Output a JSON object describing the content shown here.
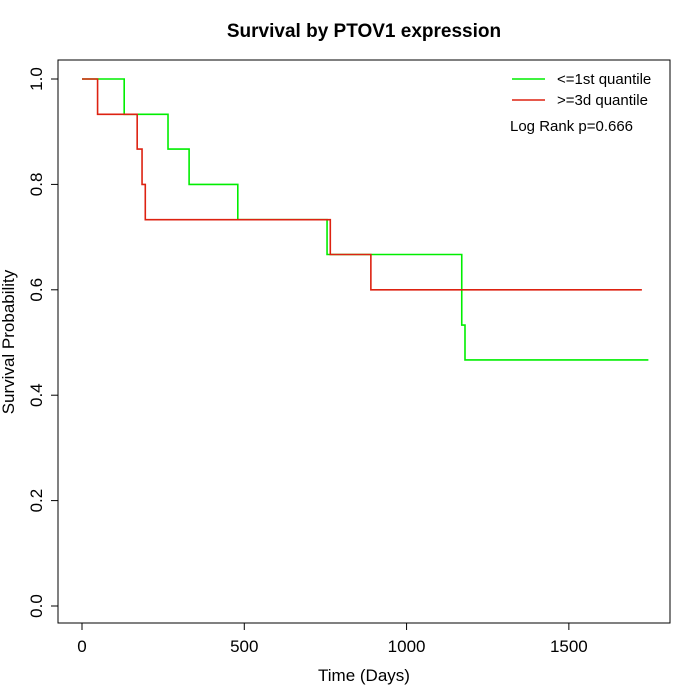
{
  "chart_data": {
    "type": "line",
    "title": "Survival by PTOV1 expression",
    "xlabel": "Time (Days)",
    "ylabel": "Survival Probability",
    "xlim": [
      0,
      1750
    ],
    "ylim": [
      0,
      1.0
    ],
    "x_ticks": [
      0,
      500,
      1000,
      1500
    ],
    "y_ticks": [
      0.0,
      0.2,
      0.4,
      0.6,
      0.8,
      1.0
    ],
    "x_tick_labels": [
      "0",
      "500",
      "1000",
      "1500"
    ],
    "y_tick_labels": [
      "0.0",
      "0.2",
      "0.4",
      "0.6",
      "0.8",
      "1.0"
    ],
    "legend_position": "top-right",
    "annotation": "Log Rank p=0.666",
    "series": [
      {
        "name": "<=1st quantile",
        "color": "#00ee00",
        "x": [
          0,
          130,
          265,
          330,
          480,
          755,
          1170,
          1180,
          1745
        ],
        "y": [
          1.0,
          0.933,
          0.867,
          0.8,
          0.733,
          0.667,
          0.533,
          0.467,
          0.467
        ]
      },
      {
        "name": ">=3d quantile",
        "color": "#dd2211",
        "x": [
          0,
          48,
          170,
          185,
          195,
          765,
          890,
          1725
        ],
        "y": [
          1.0,
          0.933,
          0.867,
          0.8,
          0.733,
          0.667,
          0.6,
          0.6
        ]
      }
    ]
  }
}
